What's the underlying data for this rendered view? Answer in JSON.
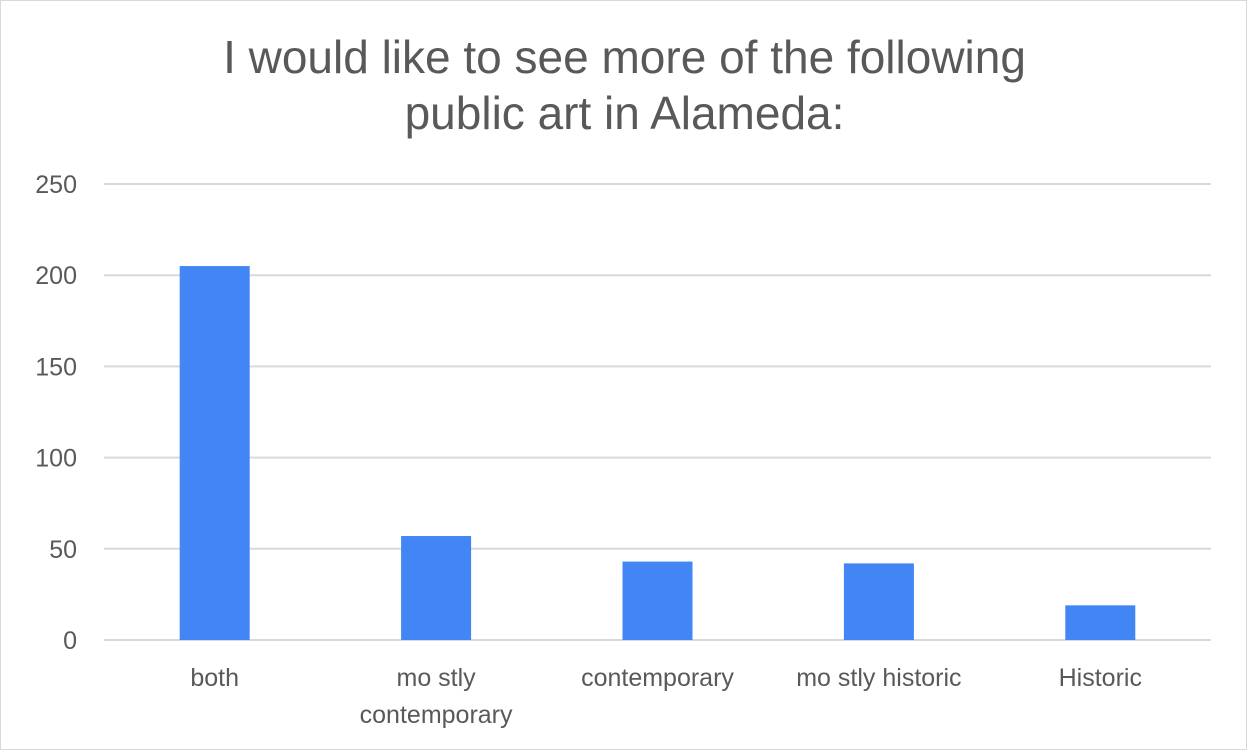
{
  "chart_data": {
    "type": "bar",
    "title_lines": [
      "I would like to see more of the following",
      "public art in Alameda:"
    ],
    "categories": [
      [
        "both"
      ],
      [
        "mo stly",
        "contemporary"
      ],
      [
        "contemporary"
      ],
      [
        "mo stly historic"
      ],
      [
        "Historic"
      ]
    ],
    "values": [
      205,
      57,
      43,
      42,
      19
    ],
    "ylim": [
      0,
      250
    ],
    "yticks": [
      0,
      50,
      100,
      150,
      200,
      250
    ],
    "grid": true,
    "legend": "none",
    "colors": {
      "bar": "#4285f4",
      "grid": "#d9d9d9",
      "text": "#595959"
    }
  }
}
